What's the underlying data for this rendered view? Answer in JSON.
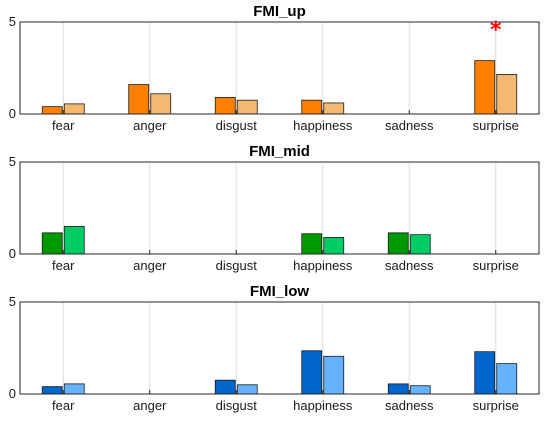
{
  "chart_data": [
    {
      "type": "bar",
      "title": "FMI_up",
      "categories": [
        "fear",
        "anger",
        "disgust",
        "happiness",
        "sadness",
        "surprise"
      ],
      "ylim": [
        0,
        5
      ],
      "yticks": [
        0,
        5
      ],
      "grid": "vertical",
      "legend": "none",
      "series": [
        {
          "values": [
            0.4,
            1.6,
            0.9,
            0.75,
            0,
            2.9
          ],
          "color": "#ff8000"
        },
        {
          "values": [
            0.55,
            1.1,
            0.75,
            0.6,
            0,
            2.15
          ],
          "color": "#f5b870"
        }
      ],
      "annotations": [
        {
          "text": "*",
          "category": "surprise",
          "color": "#ff0000"
        }
      ]
    },
    {
      "type": "bar",
      "title": "FMI_mid",
      "categories": [
        "fear",
        "anger",
        "disgust",
        "happiness",
        "sadness",
        "surprise"
      ],
      "ylim": [
        0,
        5
      ],
      "yticks": [
        0,
        5
      ],
      "grid": "vertical",
      "legend": "none",
      "series": [
        {
          "values": [
            1.15,
            0,
            0,
            1.1,
            1.15,
            0
          ],
          "color": "#009900"
        },
        {
          "values": [
            1.5,
            0,
            0,
            0.9,
            1.05,
            0
          ],
          "color": "#00cc66"
        }
      ],
      "annotations": []
    },
    {
      "type": "bar",
      "title": "FMI_low",
      "categories": [
        "fear",
        "anger",
        "disgust",
        "happiness",
        "sadness",
        "surprise"
      ],
      "ylim": [
        0,
        5
      ],
      "yticks": [
        0,
        5
      ],
      "grid": "vertical",
      "legend": "none",
      "series": [
        {
          "values": [
            0.4,
            0,
            0.75,
            2.35,
            0.55,
            2.3
          ],
          "color": "#0066cc"
        },
        {
          "values": [
            0.55,
            0,
            0.5,
            2.05,
            0.45,
            1.65
          ],
          "color": "#66b2ff"
        }
      ],
      "annotations": []
    }
  ],
  "colors": {
    "axis": "#262626",
    "grid": "#dedede"
  }
}
